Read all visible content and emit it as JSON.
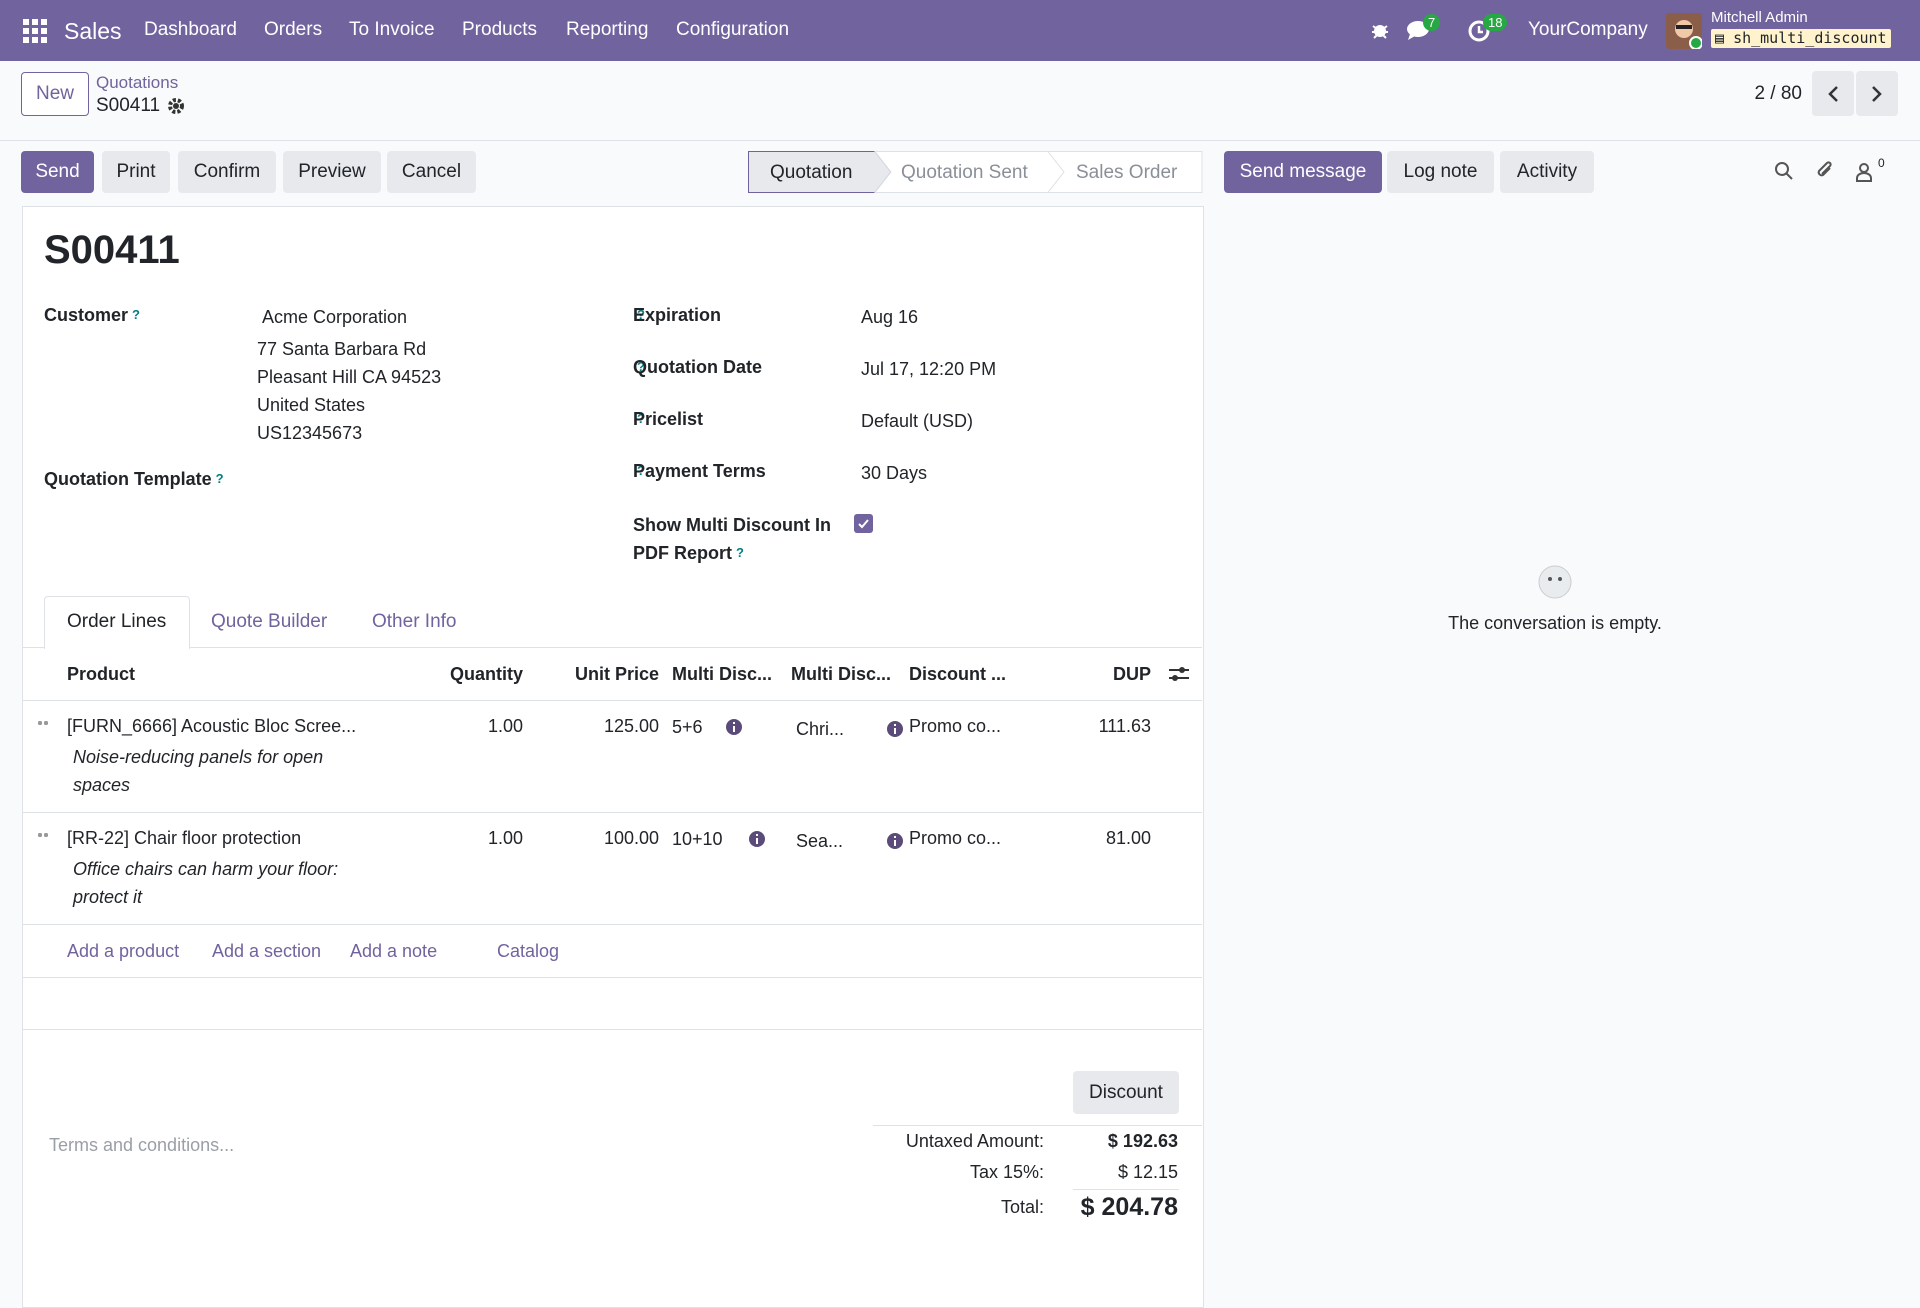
{
  "navbar": {
    "app": "Sales",
    "menu": [
      "Dashboard",
      "Orders",
      "To Invoice",
      "Products",
      "Reporting",
      "Configuration"
    ],
    "messages_badge": "7",
    "activities_badge": "18",
    "company": "YourCompany",
    "user": "Mitchell Admin",
    "database": "sh_multi_discount"
  },
  "control_panel": {
    "new_button": "New",
    "breadcrumb": "Quotations",
    "record": "S00411",
    "pager": "2 / 80"
  },
  "actions": [
    "Send",
    "Print",
    "Confirm",
    "Preview",
    "Cancel"
  ],
  "statusbar": [
    "Quotation",
    "Quotation Sent",
    "Sales Order"
  ],
  "chatter": {
    "buttons": [
      "Send message",
      "Log note",
      "Activity"
    ],
    "followers": "0",
    "empty": "The conversation is empty."
  },
  "form": {
    "name": "S00411",
    "help_mark": "?",
    "customer": {
      "label": "Customer",
      "lines": [
        "Acme Corporation",
        "77 Santa Barbara Rd",
        "Pleasant Hill CA 94523",
        "United States",
        "US12345673"
      ]
    },
    "template_label": "Quotation Template",
    "right_fields": [
      {
        "label": "Expiration",
        "value": "Aug 16"
      },
      {
        "label": "Quotation Date",
        "value": "Jul 17, 12:20 PM"
      },
      {
        "label": "Pricelist",
        "value": "Default (USD)"
      },
      {
        "label": "Payment Terms",
        "value": "30 Days"
      }
    ],
    "show_multi_discount": {
      "label": "Show Multi Discount In PDF Report",
      "checked": true
    },
    "tabs": [
      "Order Lines",
      "Quote Builder",
      "Other Info"
    ],
    "columns": [
      "Product",
      "Quantity",
      "Unit Price",
      "Multi Disc...",
      "Multi Disc...",
      "Discount ...",
      "DUP"
    ],
    "rows": [
      {
        "product": "[FURN_6666] Acoustic Bloc Scree...",
        "description": "Noise-reducing panels for open spaces",
        "quantity": "1.00",
        "unit_price": "125.00",
        "multi_disc": "5+6",
        "multi_disc_name": "Chri...",
        "discount": "Promo co...",
        "dup": "111.63"
      },
      {
        "product": "[RR-22] Chair floor protection",
        "description": "Office chairs can harm your floor: protect it",
        "quantity": "1.00",
        "unit_price": "100.00",
        "multi_disc": "10+10",
        "multi_disc_name": "Sea...",
        "discount": "Promo co...",
        "dup": "81.00"
      }
    ],
    "add_links": [
      "Add a product",
      "Add a section",
      "Add a note",
      "Catalog"
    ],
    "terms_placeholder": "Terms and conditions...",
    "discount_button": "Discount",
    "totals": [
      {
        "label": "Untaxed Amount:",
        "value": "$ 192.63"
      },
      {
        "label": "Tax 15%:",
        "value": "$ 12.15"
      },
      {
        "label": "Total:",
        "value": "$ 204.78"
      }
    ]
  }
}
